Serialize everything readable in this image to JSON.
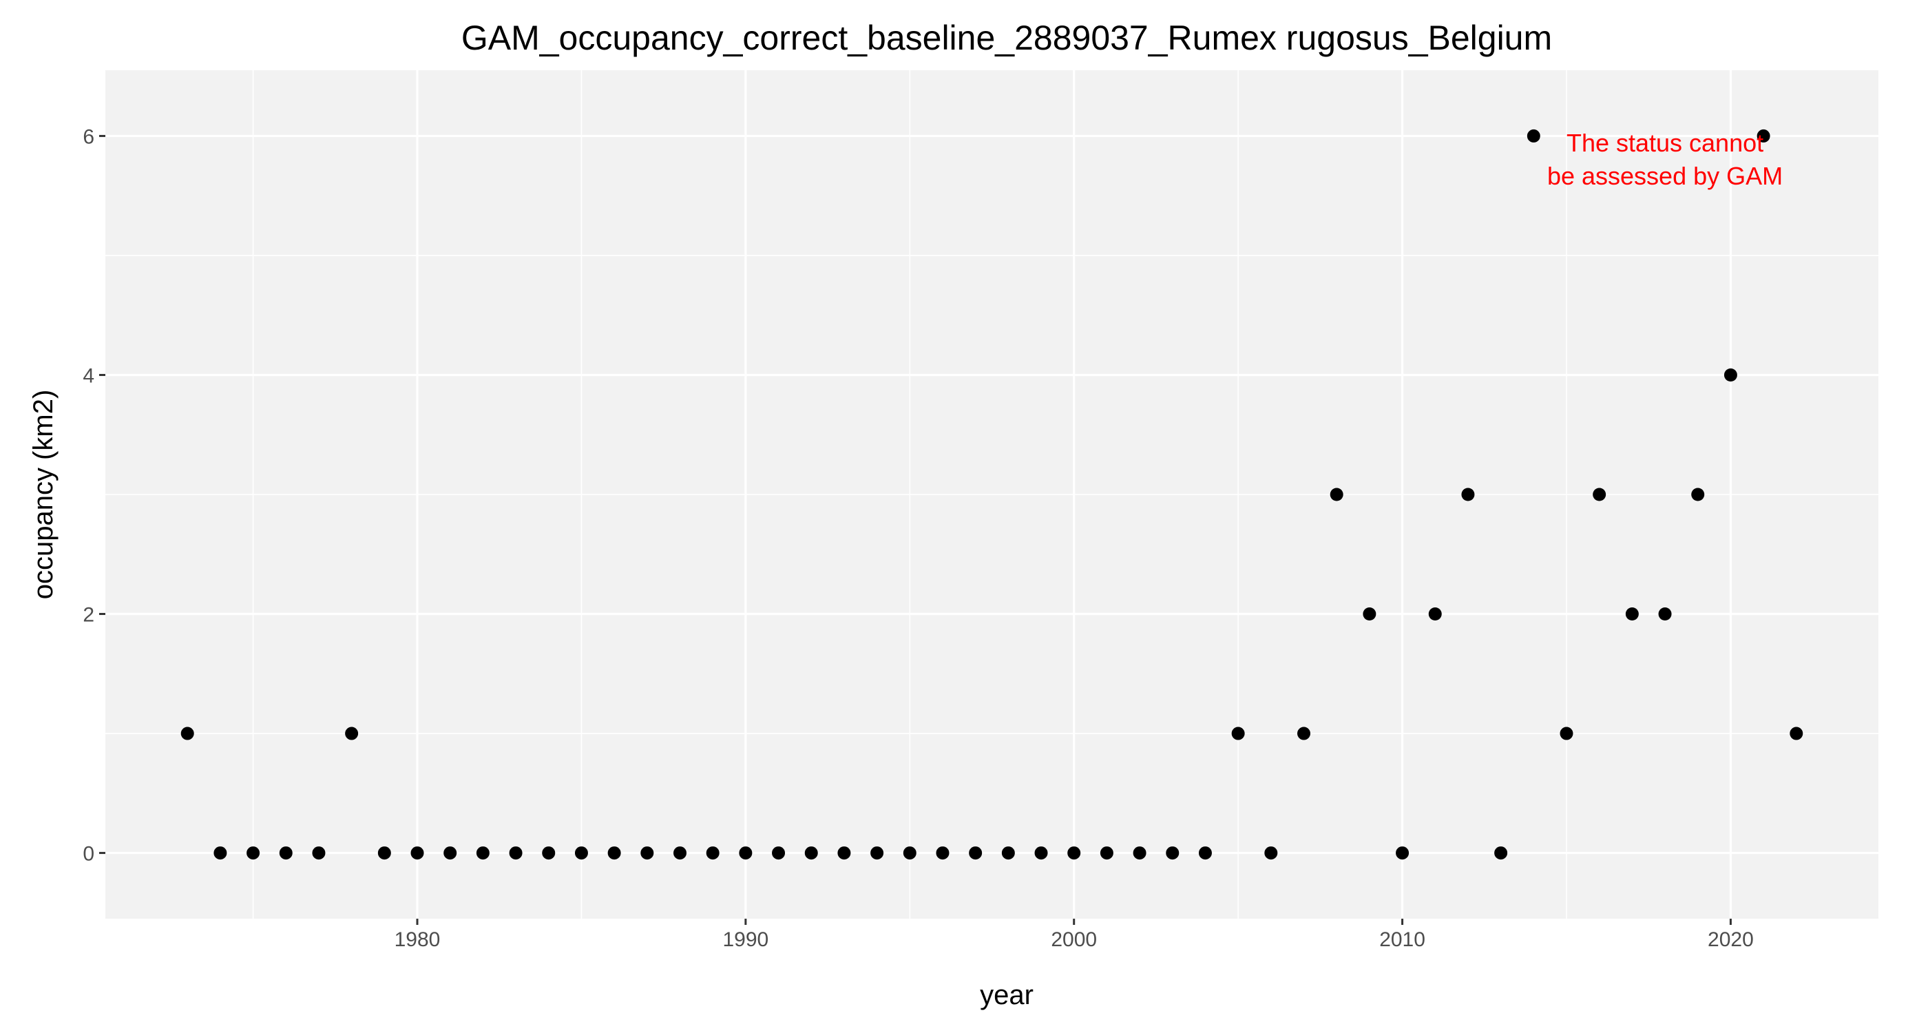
{
  "chart_data": {
    "type": "scatter",
    "title": "GAM_occupancy_correct_baseline_2889037_Rumex rugosus_Belgium",
    "xlabel": "year",
    "ylabel": "occupancy (km2)",
    "xlim": [
      1970.5,
      2024.5
    ],
    "ylim": [
      -0.55,
      6.55
    ],
    "x_ticks": [
      1980,
      1990,
      2000,
      2010,
      2020
    ],
    "y_ticks": [
      0,
      2,
      4,
      6
    ],
    "x_minor_ticks": [
      1975,
      1985,
      1995,
      2005,
      2015
    ],
    "y_minor_ticks": [
      1,
      3,
      5
    ],
    "grid": true,
    "legend": "none",
    "point_color": "#000000",
    "panel_background": "#f2f2f2",
    "annotation": {
      "lines": [
        "The status cannot",
        "be assessed by GAM"
      ],
      "color": "#ff0000",
      "x": 2018,
      "y": 5.8
    },
    "x": [
      1973,
      1974,
      1975,
      1976,
      1977,
      1978,
      1979,
      1980,
      1981,
      1982,
      1983,
      1984,
      1985,
      1986,
      1987,
      1988,
      1989,
      1990,
      1991,
      1992,
      1993,
      1994,
      1995,
      1996,
      1997,
      1998,
      1999,
      2000,
      2001,
      2002,
      2003,
      2004,
      2005,
      2006,
      2007,
      2008,
      2009,
      2010,
      2011,
      2012,
      2013,
      2014,
      2015,
      2016,
      2017,
      2018,
      2019,
      2020,
      2021,
      2022
    ],
    "y": [
      1,
      0,
      0,
      0,
      0,
      1,
      0,
      0,
      0,
      0,
      0,
      0,
      0,
      0,
      0,
      0,
      0,
      0,
      0,
      0,
      0,
      0,
      0,
      0,
      0,
      0,
      0,
      0,
      0,
      0,
      0,
      0,
      1,
      0,
      1,
      3,
      2,
      0,
      2,
      3,
      0,
      6,
      1,
      3,
      2,
      2,
      3,
      4,
      6,
      1
    ]
  }
}
